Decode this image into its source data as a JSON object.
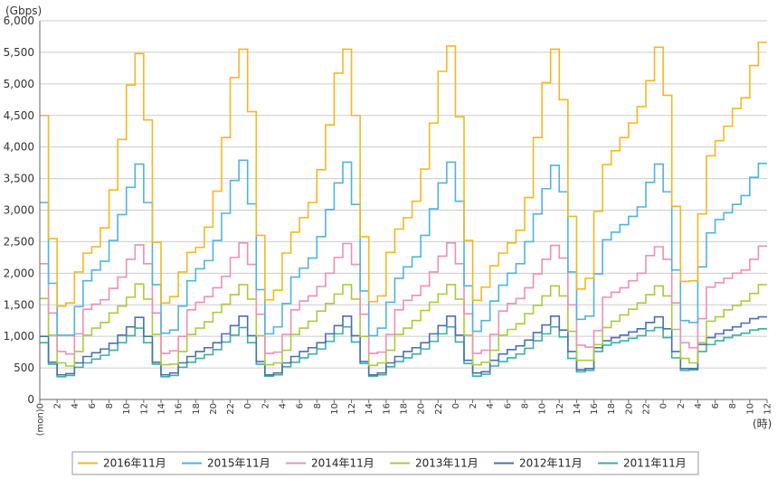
{
  "chart_data": {
    "type": "line",
    "step": true,
    "ylabel": "(Gbps)",
    "xlabel": "(時)",
    "ylim": [
      0,
      6000
    ],
    "yticks": [
      0,
      500,
      1000,
      1500,
      2000,
      2500,
      3000,
      3500,
      4000,
      4500,
      5000,
      5500,
      6000
    ],
    "ytick_labels": [
      "0",
      "500",
      "1,000",
      "1,500",
      "2,000",
      "2,500",
      "3,000",
      "3,500",
      "4,000",
      "4,500",
      "5,000",
      "5,500",
      "6,000"
    ],
    "x_first_label": "(mon)0",
    "x_tick_labels": [
      "2",
      "4",
      "6",
      "8",
      "10",
      "12",
      "14",
      "16",
      "18",
      "20",
      "22",
      "0",
      "2",
      "4",
      "6",
      "8",
      "10",
      "12",
      "14",
      "16",
      "18",
      "20",
      "22",
      "0",
      "2",
      "4",
      "6",
      "8",
      "10",
      "12",
      "14",
      "16",
      "18",
      "20",
      "22",
      "0",
      "2",
      "4",
      "6",
      "8",
      "10",
      "12",
      "14",
      "16",
      "18",
      "20",
      "22",
      "0",
      "2",
      "4",
      "6",
      "8",
      "10",
      "12",
      "14",
      "16",
      "18",
      "20",
      "22",
      "0",
      "2",
      "4",
      "6",
      "8",
      "10",
      "12",
      "14",
      "16",
      "18",
      "20",
      "22",
      "0",
      "2",
      "4",
      "6",
      "8",
      "10",
      "12",
      "14",
      "16",
      "18",
      "20",
      "22"
    ],
    "x_count": 84,
    "grid": "horizontal",
    "legend_position": "bottom",
    "series": [
      {
        "name": "2016年11月",
        "color": "#F5B81E",
        "values": [
          4500,
          2550,
          1480,
          1530,
          2020,
          2320,
          2420,
          2720,
          3320,
          4120,
          4980,
          5480,
          4430,
          2490,
          1530,
          1630,
          2020,
          2330,
          2410,
          2730,
          3300,
          4150,
          5100,
          5550,
          4560,
          2600,
          1580,
          1730,
          2320,
          2650,
          2880,
          3120,
          3640,
          4350,
          5170,
          5550,
          4500,
          2580,
          1550,
          1640,
          2330,
          2700,
          2880,
          3140,
          3650,
          4380,
          5200,
          5600,
          4480,
          2520,
          1570,
          1780,
          2120,
          2320,
          2480,
          2680,
          3200,
          4150,
          5020,
          5550,
          4750,
          2900,
          1750,
          1920,
          2980,
          3720,
          3940,
          4150,
          4380,
          4640,
          5050,
          5580,
          4820,
          3060,
          1870,
          1880,
          2940,
          3860,
          4100,
          4330,
          4610,
          4780,
          5290,
          5660
        ]
      },
      {
        "name": "2015年11月",
        "color": "#4FB3E2",
        "values": [
          3120,
          1840,
          1020,
          1020,
          1470,
          1880,
          2050,
          2190,
          2520,
          2930,
          3360,
          3730,
          3120,
          1820,
          1050,
          1100,
          1480,
          1880,
          2070,
          2200,
          2520,
          2950,
          3470,
          3790,
          3100,
          1740,
          1040,
          1150,
          1520,
          1940,
          2080,
          2240,
          2580,
          3010,
          3430,
          3760,
          3090,
          1720,
          1010,
          1130,
          1540,
          1920,
          2100,
          2260,
          2600,
          3020,
          3430,
          3760,
          3140,
          1800,
          1080,
          1250,
          1560,
          1810,
          2000,
          2150,
          2500,
          2940,
          3340,
          3710,
          3290,
          2020,
          1270,
          1320,
          1990,
          2530,
          2650,
          2770,
          2900,
          3050,
          3440,
          3730,
          3290,
          2050,
          1250,
          1220,
          2100,
          2640,
          2850,
          2960,
          3090,
          3230,
          3520,
          3740
        ]
      },
      {
        "name": "2014年11月",
        "color": "#EE8FB8",
        "values": [
          2150,
          1370,
          760,
          720,
          1040,
          1430,
          1510,
          1580,
          1760,
          1940,
          2220,
          2450,
          2150,
          1370,
          730,
          770,
          1000,
          1420,
          1540,
          1630,
          1770,
          1950,
          2250,
          2480,
          2140,
          1350,
          730,
          750,
          1030,
          1420,
          1560,
          1640,
          1790,
          2000,
          2250,
          2470,
          2140,
          1350,
          730,
          750,
          1030,
          1420,
          1570,
          1650,
          1800,
          2020,
          2270,
          2480,
          2150,
          1360,
          730,
          780,
          1030,
          1400,
          1520,
          1600,
          1770,
          1990,
          2220,
          2440,
          2240,
          1500,
          860,
          830,
          1090,
          1620,
          1700,
          1770,
          1880,
          2000,
          2280,
          2420,
          2220,
          1530,
          900,
          820,
          1280,
          1780,
          1850,
          1920,
          2000,
          2050,
          2220,
          2430
        ]
      },
      {
        "name": "2013年11月",
        "color": "#A9CC3A",
        "values": [
          1600,
          1020,
          580,
          530,
          760,
          1020,
          1130,
          1220,
          1370,
          1480,
          1620,
          1830,
          1590,
          1030,
          550,
          560,
          760,
          1030,
          1130,
          1230,
          1380,
          1510,
          1660,
          1820,
          1590,
          1010,
          550,
          580,
          780,
          1030,
          1130,
          1240,
          1400,
          1520,
          1670,
          1820,
          1590,
          1000,
          540,
          580,
          780,
          1030,
          1130,
          1250,
          1410,
          1540,
          1670,
          1820,
          1590,
          1020,
          550,
          590,
          780,
          1020,
          1110,
          1200,
          1360,
          1490,
          1640,
          1800,
          1640,
          1080,
          620,
          620,
          870,
          1140,
          1240,
          1340,
          1430,
          1530,
          1660,
          1800,
          1640,
          1110,
          650,
          580,
          900,
          1240,
          1310,
          1420,
          1490,
          1560,
          1680,
          1820
        ]
      },
      {
        "name": "2012年11月",
        "color": "#4A6FB5",
        "values": [
          1000,
          590,
          390,
          410,
          580,
          680,
          740,
          800,
          890,
          1020,
          1150,
          1300,
          1000,
          590,
          390,
          420,
          580,
          680,
          760,
          820,
          900,
          1040,
          1170,
          1320,
          1010,
          600,
          390,
          420,
          580,
          680,
          760,
          820,
          900,
          1040,
          1170,
          1320,
          1010,
          600,
          390,
          420,
          580,
          680,
          760,
          820,
          900,
          1040,
          1170,
          1320,
          1020,
          620,
          420,
          440,
          620,
          720,
          790,
          850,
          940,
          1060,
          1180,
          1320,
          1100,
          760,
          470,
          490,
          820,
          930,
          980,
          1020,
          1070,
          1120,
          1220,
          1310,
          1120,
          760,
          490,
          490,
          870,
          980,
          1040,
          1100,
          1150,
          1210,
          1280,
          1310
        ]
      },
      {
        "name": "2011年11月",
        "color": "#3BB09E",
        "values": [
          900,
          560,
          360,
          380,
          510,
          580,
          640,
          700,
          780,
          900,
          1010,
          1130,
          900,
          560,
          360,
          380,
          510,
          590,
          650,
          710,
          790,
          910,
          1020,
          1140,
          900,
          560,
          370,
          390,
          520,
          590,
          660,
          720,
          800,
          920,
          1040,
          1150,
          910,
          570,
          370,
          390,
          520,
          600,
          660,
          720,
          800,
          920,
          1040,
          1150,
          910,
          570,
          370,
          400,
          530,
          600,
          660,
          720,
          810,
          930,
          1040,
          1150,
          990,
          650,
          440,
          460,
          760,
          860,
          900,
          930,
          970,
          1010,
          1090,
          1140,
          980,
          660,
          460,
          470,
          760,
          870,
          930,
          980,
          1020,
          1050,
          1100,
          1120
        ]
      }
    ]
  }
}
